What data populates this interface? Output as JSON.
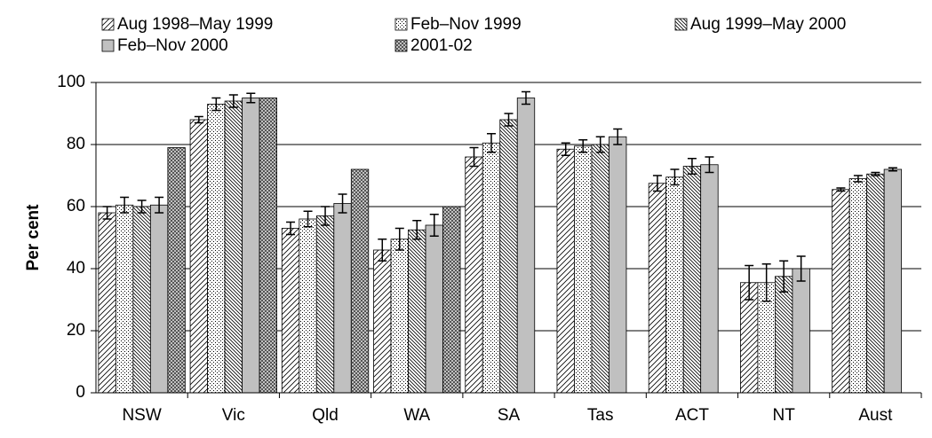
{
  "chart_data": {
    "type": "bar",
    "y_label": "Per cent",
    "categories": [
      "NSW",
      "Vic",
      "Qld",
      "WA",
      "SA",
      "Tas",
      "ACT",
      "NT",
      "Aust"
    ],
    "series": [
      {
        "name": "Aug 1998–May 1999",
        "color": "#ffffff",
        "pattern": "diagonal",
        "values": [
          58,
          88,
          53,
          46,
          76,
          78.5,
          67.5,
          35.5,
          65.5
        ],
        "errors": [
          2,
          1,
          2,
          3.5,
          3,
          2,
          2.5,
          5.5,
          0.5
        ]
      },
      {
        "name": "Feb–Nov 1999",
        "color": "#ffffff",
        "pattern": "dots",
        "values": [
          60.5,
          93,
          56,
          49.5,
          80.5,
          79.5,
          69.5,
          35.5,
          69
        ],
        "errors": [
          2.5,
          2,
          2.5,
          3.5,
          3,
          2,
          2.5,
          6,
          1
        ]
      },
      {
        "name": "Aug 1999–May 2000",
        "color": "#ffffff",
        "pattern": "hatch",
        "values": [
          60,
          94,
          57,
          52.5,
          88,
          80,
          73,
          37.5,
          70.5
        ],
        "errors": [
          2,
          2,
          3,
          3,
          2,
          2.5,
          2.5,
          5,
          0.5
        ]
      },
      {
        "name": "Feb–Nov 2000",
        "color": "#c0c0c0",
        "pattern": "solid",
        "values": [
          60.5,
          95,
          61,
          54,
          95,
          82.5,
          73.5,
          40,
          72
        ],
        "errors": [
          2.5,
          1.5,
          3,
          3.5,
          2,
          2.5,
          2.5,
          4,
          0.5
        ]
      },
      {
        "name": "2001-02",
        "color": "#c0c0c0",
        "pattern": "check",
        "values": [
          79,
          95,
          72,
          60,
          null,
          null,
          null,
          null,
          null
        ],
        "errors": [
          null,
          null,
          null,
          null,
          null,
          null,
          null,
          null,
          null
        ]
      }
    ],
    "ylim": [
      0,
      100
    ],
    "yticks": [
      0,
      20,
      40,
      60,
      80,
      100
    ],
    "grid": true
  }
}
